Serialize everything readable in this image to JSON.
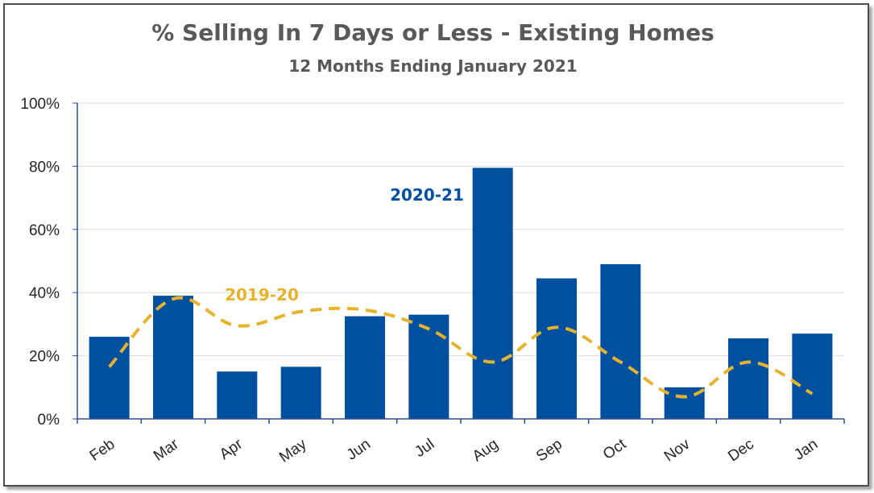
{
  "chart_data": {
    "type": "bar",
    "title": "% Selling In 7 Days or Less - Existing Homes",
    "subtitle": "12 Months Ending January 2021",
    "categories": [
      "Feb",
      "Mar",
      "Apr",
      "May",
      "Jun",
      "Jul",
      "Aug",
      "Sep",
      "Oct",
      "Nov",
      "Dec",
      "Jan"
    ],
    "series": [
      {
        "name": "2020-21",
        "type": "bar",
        "color": "#0050a0",
        "values": [
          26,
          39,
          15,
          16.5,
          32.5,
          33,
          79.5,
          44.5,
          49,
          10,
          25.5,
          27
        ]
      },
      {
        "name": "2019-20",
        "type": "line",
        "style": "dashed",
        "color": "#e6b32d",
        "values": [
          16.5,
          38,
          29.5,
          34,
          34.5,
          28.5,
          18,
          29,
          18,
          7,
          18,
          8
        ]
      }
    ],
    "yticks": [
      "0%",
      "20%",
      "40%",
      "60%",
      "80%",
      "100%"
    ],
    "ylim": [
      0,
      100
    ],
    "grid": true,
    "gridColor": "#d9d9d9",
    "axisColor": "#2f4f8f"
  }
}
